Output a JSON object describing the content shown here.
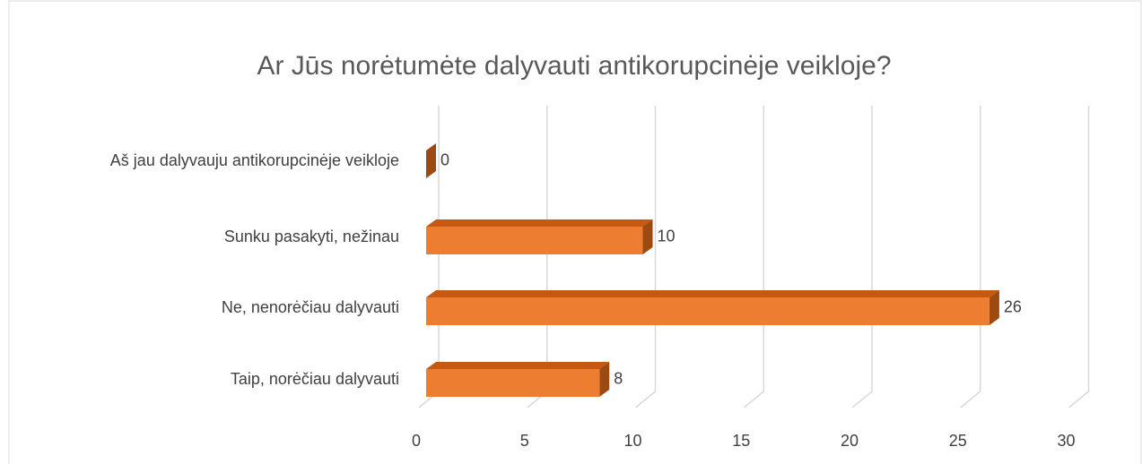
{
  "chart_data": {
    "type": "bar3d",
    "orientation": "horizontal",
    "title": "Ar Jūs norėtumėte dalyvauti antikorupcinėje veikloje?",
    "categories": [
      "Aš jau dalyvauju antikorupcinėje veikloje",
      "Sunku pasakyti, nežinau",
      "Ne, nenorėčiau dalyvauti",
      "Taip, norėčiau dalyvauti"
    ],
    "values": [
      0,
      10,
      26,
      8
    ],
    "color": "#ed7d31",
    "xlim": [
      0,
      30
    ],
    "xticks": [
      0,
      5,
      10,
      15,
      20,
      25,
      30
    ],
    "grid": true
  }
}
